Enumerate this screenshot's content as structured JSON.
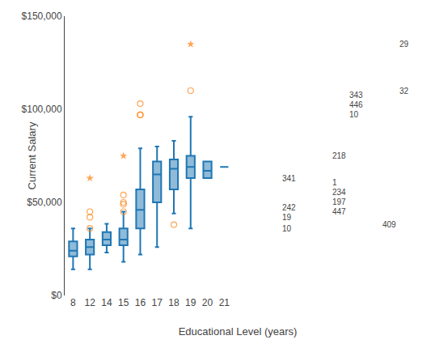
{
  "chart_data": {
    "type": "box",
    "categories": [
      "8",
      "12",
      "14",
      "15",
      "16",
      "17",
      "18",
      "19",
      "20",
      "21"
    ],
    "q1": [
      21000,
      22000,
      27000,
      27000,
      36000,
      50000,
      57000,
      63000,
      63000,
      69000
    ],
    "median": [
      24000,
      26000,
      30000,
      30000,
      46000,
      65000,
      68000,
      69000,
      67000,
      69000
    ],
    "q3": [
      29000,
      30000,
      34000,
      36000,
      57000,
      72000,
      73000,
      75000,
      72000,
      69000
    ],
    "whislo": [
      14000,
      14000,
      23000,
      18000,
      22000,
      26000,
      44000,
      36000,
      63000,
      69000
    ],
    "whishi": [
      36000,
      36000,
      38500,
      45000,
      79000,
      80000,
      83000,
      96000,
      72000,
      69000
    ],
    "outliers": [
      {
        "category": "12",
        "value": 42000,
        "label": "19",
        "marker": "circle"
      },
      {
        "category": "12",
        "value": 45000,
        "label": "242",
        "marker": "circle"
      },
      {
        "category": "12",
        "value": 36000,
        "label": "10",
        "marker": "circle"
      },
      {
        "category": "15",
        "value": 54000,
        "label": "1",
        "marker": "circle"
      },
      {
        "category": "15",
        "value": 50000,
        "label": "234",
        "marker": "circle"
      },
      {
        "category": "15",
        "value": 49000,
        "label": "197",
        "marker": "circle"
      },
      {
        "category": "15",
        "value": 45000,
        "label": "447",
        "marker": "circle"
      },
      {
        "category": "16",
        "value": 103000,
        "label": "343",
        "marker": "circle"
      },
      {
        "category": "16",
        "value": 97000,
        "label": "10",
        "marker": "circle"
      },
      {
        "category": "16",
        "value": 97000,
        "label": "446",
        "marker": "circle"
      },
      {
        "category": "18",
        "value": 38000,
        "label": "409",
        "marker": "circle"
      },
      {
        "category": "19",
        "value": 110000,
        "label": "32",
        "marker": "circle"
      },
      {
        "category": "12",
        "value": 63000,
        "label": "341",
        "marker": "star"
      },
      {
        "category": "15",
        "value": 75000,
        "label": "218",
        "marker": "star"
      },
      {
        "category": "19",
        "value": 135000,
        "label": "29",
        "marker": "star"
      }
    ],
    "xlabel": "Educational Level (years)",
    "ylabel": "Current Salary",
    "ylim": [
      0,
      150000
    ],
    "yticks": [
      {
        "value": 0,
        "label": "$0"
      },
      {
        "value": 50000,
        "label": "$50,000"
      },
      {
        "value": 100000,
        "label": "$100,000"
      },
      {
        "value": 150000,
        "label": "$150,000"
      }
    ],
    "grid": false
  }
}
